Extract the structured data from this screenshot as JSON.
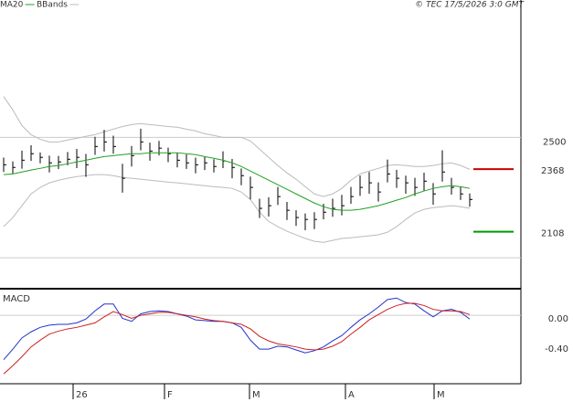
{
  "header": {
    "copyright": "© TEC 17/5/2026 3:0 GMT"
  },
  "chart_data": [
    {
      "type": "ohlc",
      "bar_color": "#000000",
      "high": [
        2416,
        2400,
        2445,
        2467,
        2437,
        2424,
        2423,
        2439,
        2452,
        2431,
        2502,
        2531,
        2507,
        2390,
        2464,
        2536,
        2478,
        2485,
        2457,
        2435,
        2429,
        2416,
        2419,
        2409,
        2442,
        2410,
        2371,
        2337,
        2245,
        2251,
        2294,
        2232,
        2197,
        2184,
        2189,
        2224,
        2245,
        2261,
        2294,
        2342,
        2356,
        2313,
        2408,
        2365,
        2341,
        2332,
        2353,
        2310,
        2446,
        2332,
        2295,
        2267
      ],
      "low": [
        2356,
        2350,
        2370,
        2402,
        2392,
        2354,
        2368,
        2384,
        2372,
        2336,
        2427,
        2441,
        2432,
        2270,
        2379,
        2446,
        2403,
        2425,
        2397,
        2375,
        2369,
        2351,
        2364,
        2354,
        2372,
        2330,
        2301,
        2242,
        2165,
        2171,
        2219,
        2157,
        2132,
        2114,
        2119,
        2159,
        2170,
        2176,
        2224,
        2257,
        2266,
        2233,
        2313,
        2290,
        2266,
        2257,
        2278,
        2220,
        2316,
        2262,
        2240,
        2212
      ],
      "close": [
        2386,
        2375,
        2405,
        2432,
        2417,
        2394,
        2398,
        2409,
        2417,
        2386,
        2462,
        2481,
        2462,
        2330,
        2424,
        2481,
        2443,
        2455,
        2432,
        2405,
        2394,
        2386,
        2394,
        2379,
        2402,
        2375,
        2341,
        2292,
        2205,
        2216,
        2254,
        2197,
        2167,
        2159,
        2159,
        2189,
        2205,
        2216,
        2254,
        2292,
        2311,
        2273,
        2348,
        2330,
        2311,
        2292,
        2318,
        2265,
        2356,
        2292,
        2265,
        2242
      ],
      "series": [
        {
          "name": "MA20",
          "color": "#22a022",
          "values": [
            2345,
            2348,
            2356,
            2364,
            2371,
            2379,
            2383,
            2390,
            2398,
            2405,
            2413,
            2420,
            2424,
            2428,
            2432,
            2432,
            2436,
            2436,
            2436,
            2436,
            2432,
            2428,
            2420,
            2413,
            2405,
            2394,
            2379,
            2360,
            2341,
            2322,
            2303,
            2284,
            2265,
            2246,
            2227,
            2212,
            2201,
            2197,
            2197,
            2201,
            2208,
            2216,
            2227,
            2239,
            2250,
            2265,
            2277,
            2288,
            2295,
            2299,
            2295,
            2288
          ]
        },
        {
          "name": "BBands",
          "color": "#bbbbbb",
          "upper": [
            2670,
            2614,
            2549,
            2511,
            2492,
            2481,
            2481,
            2489,
            2496,
            2504,
            2511,
            2523,
            2534,
            2545,
            2553,
            2557,
            2553,
            2549,
            2545,
            2542,
            2534,
            2527,
            2515,
            2508,
            2500,
            2500,
            2500,
            2485,
            2451,
            2417,
            2383,
            2352,
            2326,
            2295,
            2265,
            2254,
            2265,
            2288,
            2322,
            2348,
            2360,
            2371,
            2383,
            2386,
            2383,
            2379,
            2379,
            2383,
            2390,
            2394,
            2383,
            2367
          ],
          "lower": [
            2129,
            2167,
            2216,
            2265,
            2292,
            2311,
            2322,
            2330,
            2337,
            2341,
            2345,
            2345,
            2341,
            2333,
            2330,
            2326,
            2322,
            2318,
            2314,
            2311,
            2307,
            2303,
            2299,
            2295,
            2292,
            2288,
            2273,
            2242,
            2189,
            2151,
            2129,
            2110,
            2095,
            2080,
            2068,
            2064,
            2072,
            2080,
            2083,
            2087,
            2091,
            2095,
            2106,
            2129,
            2159,
            2186,
            2201,
            2208,
            2212,
            2216,
            2212,
            2205
          ]
        }
      ],
      "levels": [
        {
          "value": 2368,
          "color": "#cc0000"
        },
        {
          "value": 2108,
          "color": "#009900"
        }
      ],
      "ylim": [
        1875,
        3025
      ],
      "yticks": [
        2500
      ],
      "grid": [
        2000,
        2500
      ],
      "grid_color": "#cccccc"
    },
    {
      "type": "line",
      "title": "MACD",
      "series": [
        {
          "color": "#2233cc",
          "values": [
            -0.59,
            -0.45,
            -0.3,
            -0.22,
            -0.16,
            -0.13,
            -0.12,
            -0.12,
            -0.1,
            -0.05,
            0.06,
            0.15,
            0.15,
            -0.04,
            -0.08,
            0.02,
            0.05,
            0.06,
            0.05,
            0.02,
            -0.01,
            -0.06,
            -0.07,
            -0.08,
            -0.08,
            -0.1,
            -0.16,
            -0.33,
            -0.45,
            -0.45,
            -0.41,
            -0.42,
            -0.46,
            -0.5,
            -0.47,
            -0.42,
            -0.34,
            -0.27,
            -0.16,
            -0.06,
            0.02,
            0.11,
            0.21,
            0.23,
            0.17,
            0.15,
            0.06,
            -0.02,
            0.06,
            0.08,
            0.04,
            -0.05
          ]
        },
        {
          "color": "#cc2222",
          "values": [
            -0.78,
            -0.67,
            -0.55,
            -0.42,
            -0.33,
            -0.25,
            -0.21,
            -0.18,
            -0.16,
            -0.13,
            -0.1,
            -0.02,
            0.05,
            0.01,
            -0.04,
            0.0,
            0.02,
            0.04,
            0.04,
            0.02,
            0.0,
            -0.02,
            -0.05,
            -0.07,
            -0.08,
            -0.1,
            -0.12,
            -0.18,
            -0.28,
            -0.34,
            -0.38,
            -0.4,
            -0.42,
            -0.45,
            -0.46,
            -0.45,
            -0.41,
            -0.35,
            -0.25,
            -0.16,
            -0.06,
            0.01,
            0.08,
            0.13,
            0.16,
            0.16,
            0.13,
            0.08,
            0.06,
            0.06,
            0.05,
            0.01
          ]
        }
      ],
      "ylim": [
        -0.91,
        0.33
      ],
      "yticks": [
        {
          "value": 0,
          "label": "0.00"
        },
        {
          "value": -0.4,
          "label": "-0.40"
        }
      ],
      "zero_line": 0,
      "xlim": [
        -0.4,
        56.6
      ],
      "xticks": [
        {
          "value": 7.6,
          "label": "26"
        },
        {
          "value": 17.6,
          "label": "F"
        },
        {
          "value": 26.9,
          "label": "M"
        },
        {
          "value": 37.4,
          "label": "A"
        },
        {
          "value": 47.1,
          "label": "M"
        }
      ]
    }
  ]
}
